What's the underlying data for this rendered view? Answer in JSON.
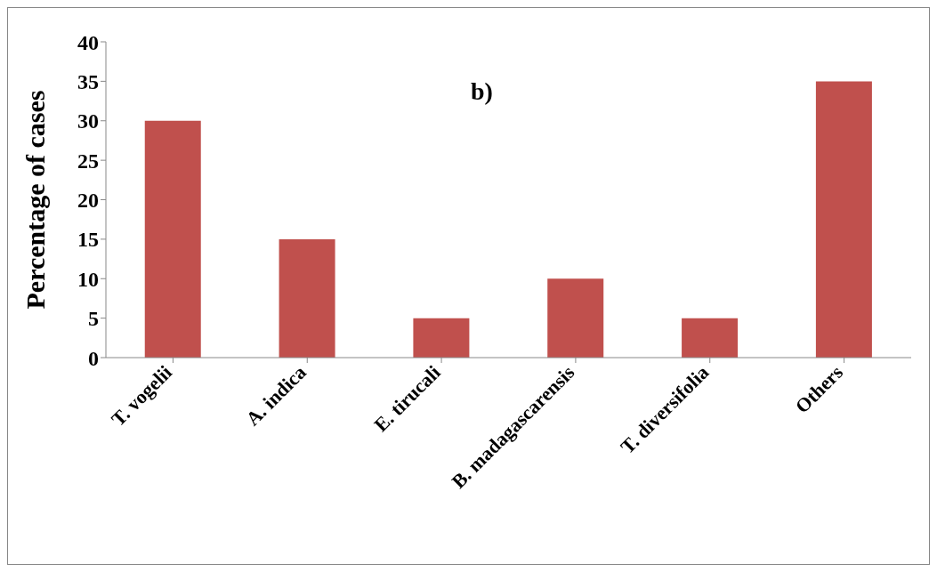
{
  "chart_data": {
    "type": "bar",
    "ylabel": "Percentage of cases",
    "annotations": [
      "b)"
    ],
    "categories": [
      "T. vogelii",
      "A. indica",
      "E. tirucali",
      "B. madagascarensis",
      "T. diversifolia",
      "Others"
    ],
    "values": [
      30,
      15,
      5,
      10,
      5,
      35
    ],
    "color": "#c0504d",
    "ylim": [
      0,
      40
    ],
    "yticks": [
      0,
      5,
      10,
      15,
      20,
      25,
      30,
      35,
      40
    ],
    "grid": false,
    "legend": false
  }
}
